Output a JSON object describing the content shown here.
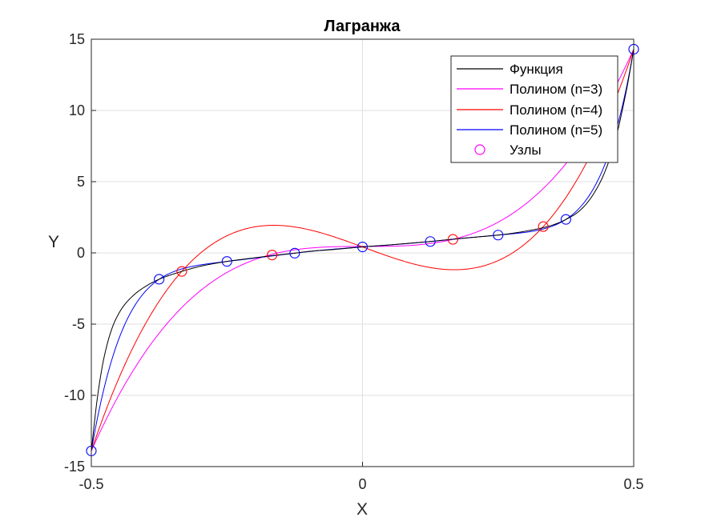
{
  "chart_data": {
    "type": "line",
    "title": "Лагранжа",
    "xlabel": "X",
    "ylabel": "Y",
    "xlim": [
      -0.5,
      0.5
    ],
    "ylim": [
      -15,
      15
    ],
    "xticks": [
      -0.5,
      0,
      0.5
    ],
    "yticks": [
      -15,
      -10,
      -5,
      0,
      5,
      10,
      15
    ],
    "xtick_labels": [
      "-0.5",
      "0",
      "0.5"
    ],
    "ytick_labels": [
      "-15",
      "-10",
      "-5",
      "0",
      "5",
      "10",
      "15"
    ],
    "grid": true,
    "legend_position": "top-right",
    "function": {
      "name": "Функция",
      "color": "#000000",
      "x": [
        -0.5,
        -0.49,
        -0.48,
        -0.47,
        -0.46,
        -0.45,
        -0.44,
        -0.42,
        -0.4,
        -0.375,
        -0.35,
        -0.3,
        -0.25,
        -0.2,
        -0.15,
        -0.125,
        -0.1,
        -0.05,
        0,
        0.05,
        0.1,
        0.125,
        0.15,
        0.2,
        0.25,
        0.3,
        0.35,
        0.375,
        0.4,
        0.42,
        0.44,
        0.45,
        0.46,
        0.47,
        0.48,
        0.49,
        0.5
      ],
      "y": [
        -13.9,
        -10.5,
        -8.0,
        -6.3,
        -5.1,
        -4.3,
        -3.7,
        -2.9,
        -2.35,
        -1.85,
        -1.5,
        -0.95,
        -0.6,
        -0.35,
        -0.12,
        -0.02,
        0.1,
        0.25,
        0.42,
        0.56,
        0.72,
        0.8,
        0.9,
        1.08,
        1.25,
        1.52,
        1.95,
        2.35,
        2.95,
        3.8,
        5.1,
        6.0,
        7.1,
        8.5,
        10.2,
        12.1,
        14.3
      ]
    },
    "series": [
      {
        "name": "Полином (n=3)",
        "color": "#ff00ff",
        "nodes_x": [
          -0.5,
          -0.1667,
          0.1667,
          0.5
        ],
        "nodes_y": [
          -13.9,
          -0.1,
          0.95,
          14.3
        ]
      },
      {
        "name": "Полином (n=4)",
        "color": "#ff0000",
        "nodes_x": [
          -0.5,
          -0.3333,
          0,
          0.3333,
          0.5
        ],
        "nodes_y": [
          -13.9,
          -1.3,
          0.42,
          1.85,
          14.3
        ],
        "markers_x": [
          -0.3333,
          -0.1667,
          0.1667,
          0.3333
        ],
        "markers_y": [
          -1.3,
          -0.15,
          0.95,
          1.85
        ]
      },
      {
        "name": "Полином (n=5)",
        "color": "#0000ff",
        "nodes_x": [
          -0.5,
          -0.375,
          -0.25,
          -0.125,
          0,
          0.125,
          0.25,
          0.375,
          0.5
        ],
        "nodes_y": [
          -13.9,
          -1.85,
          -0.6,
          -0.02,
          0.42,
          0.8,
          1.25,
          2.35,
          14.3
        ],
        "markers_x": [
          -0.5,
          -0.375,
          -0.25,
          -0.125,
          0,
          0.125,
          0.25,
          0.375,
          0.5
        ],
        "markers_y": [
          -13.9,
          -1.85,
          -0.6,
          -0.02,
          0.42,
          0.8,
          1.25,
          2.35,
          14.3
        ]
      }
    ],
    "nodes_legend": {
      "name": "Узлы",
      "color": "#ff00ff"
    }
  }
}
